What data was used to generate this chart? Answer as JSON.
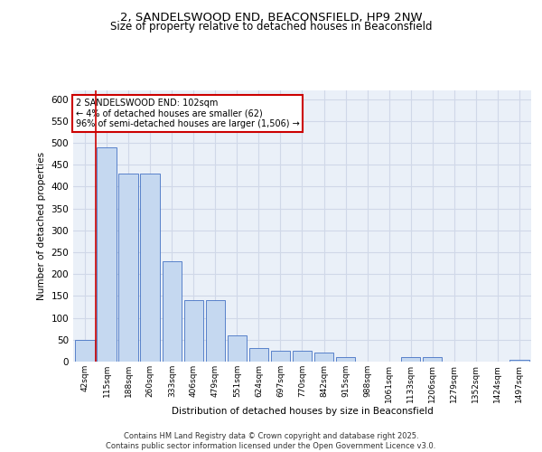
{
  "title_line1": "2, SANDELSWOOD END, BEACONSFIELD, HP9 2NW",
  "title_line2": "Size of property relative to detached houses in Beaconsfield",
  "xlabel": "Distribution of detached houses by size in Beaconsfield",
  "ylabel": "Number of detached properties",
  "categories": [
    "42sqm",
    "115sqm",
    "188sqm",
    "260sqm",
    "333sqm",
    "406sqm",
    "479sqm",
    "551sqm",
    "624sqm",
    "697sqm",
    "770sqm",
    "842sqm",
    "915sqm",
    "988sqm",
    "1061sqm",
    "1133sqm",
    "1206sqm",
    "1279sqm",
    "1352sqm",
    "1424sqm",
    "1497sqm"
  ],
  "values": [
    50,
    490,
    430,
    430,
    230,
    140,
    140,
    60,
    30,
    25,
    25,
    20,
    10,
    0,
    0,
    10,
    10,
    0,
    0,
    0,
    5
  ],
  "bar_color": "#c5d8f0",
  "bar_edge_color": "#4472c4",
  "background_color": "#eaf0f8",
  "grid_color": "#d0d8e8",
  "annotation_text": "2 SANDELSWOOD END: 102sqm\n← 4% of detached houses are smaller (62)\n96% of semi-detached houses are larger (1,506) →",
  "vline_x_idx": 1,
  "box_color": "#cc0000",
  "footer": "Contains HM Land Registry data © Crown copyright and database right 2025.\nContains public sector information licensed under the Open Government Licence v3.0.",
  "ylim": [
    0,
    620
  ],
  "yticks": [
    0,
    50,
    100,
    150,
    200,
    250,
    300,
    350,
    400,
    450,
    500,
    550,
    600
  ]
}
